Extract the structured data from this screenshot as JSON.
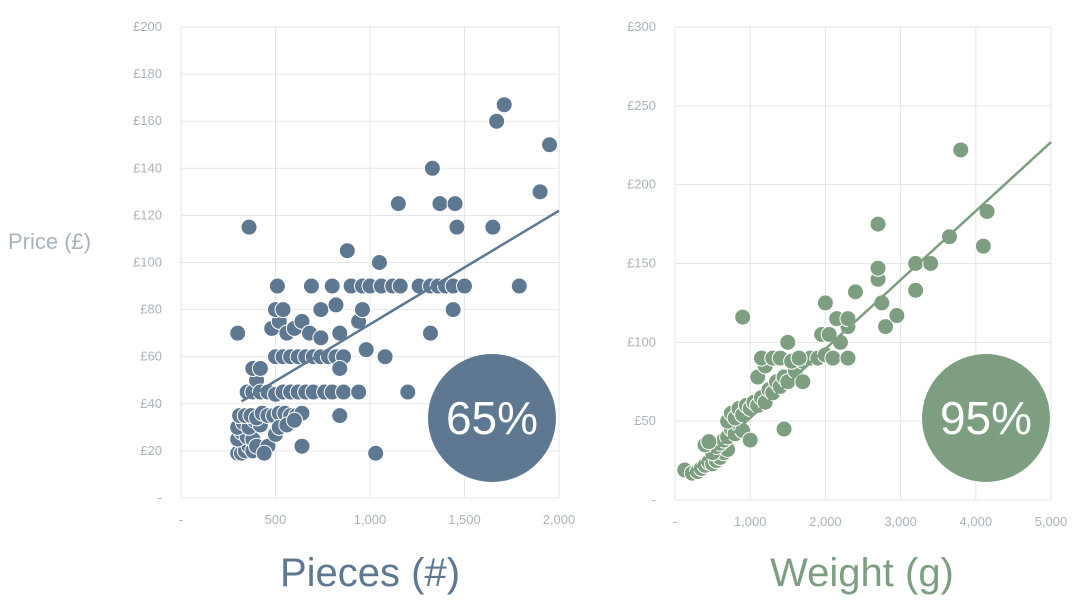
{
  "y_axis_label": "Price (£)",
  "colors": {
    "pieces": "#5f7891",
    "weight": "#7e9e82",
    "grid": "#e3e5e8",
    "tick": "#aab3bc"
  },
  "chart_data": [
    {
      "type": "scatter",
      "xlabel": "Pieces (#)",
      "ylabel": "Price (£)",
      "badge": "65%",
      "xlim": [
        0,
        2000
      ],
      "ylim": [
        0,
        200
      ],
      "x_ticks": [
        {
          "v": 0,
          "label": "-"
        },
        {
          "v": 500,
          "label": "500"
        },
        {
          "v": 1000,
          "label": "1,000"
        },
        {
          "v": 1500,
          "label": "1,500"
        },
        {
          "v": 2000,
          "label": "2,000"
        }
      ],
      "y_ticks": [
        {
          "v": 0,
          "label": "-"
        },
        {
          "v": 20,
          "label": "£20"
        },
        {
          "v": 40,
          "label": "£40"
        },
        {
          "v": 60,
          "label": "£60"
        },
        {
          "v": 80,
          "label": "£80"
        },
        {
          "v": 100,
          "label": "£100"
        },
        {
          "v": 120,
          "label": "£120"
        },
        {
          "v": 140,
          "label": "£140"
        },
        {
          "v": 160,
          "label": "£160"
        },
        {
          "v": 180,
          "label": "£180"
        },
        {
          "v": 200,
          "label": "£200"
        }
      ],
      "trendline": [
        [
          320,
          41
        ],
        [
          2000,
          122
        ]
      ],
      "points": [
        [
          300,
          19
        ],
        [
          320,
          19
        ],
        [
          340,
          20
        ],
        [
          360,
          22
        ],
        [
          380,
          20
        ],
        [
          300,
          25
        ],
        [
          320,
          28
        ],
        [
          350,
          26
        ],
        [
          380,
          25
        ],
        [
          400,
          22
        ],
        [
          300,
          30
        ],
        [
          330,
          32
        ],
        [
          360,
          30
        ],
        [
          390,
          33
        ],
        [
          420,
          31
        ],
        [
          310,
          35
        ],
        [
          340,
          35
        ],
        [
          370,
          35
        ],
        [
          400,
          34
        ],
        [
          430,
          36
        ],
        [
          460,
          35
        ],
        [
          490,
          35
        ],
        [
          520,
          36
        ],
        [
          550,
          36
        ],
        [
          580,
          35
        ],
        [
          610,
          35
        ],
        [
          640,
          36
        ],
        [
          460,
          22
        ],
        [
          500,
          27
        ],
        [
          520,
          30
        ],
        [
          560,
          31
        ],
        [
          600,
          33
        ],
        [
          440,
          19
        ],
        [
          640,
          22
        ],
        [
          350,
          45
        ],
        [
          380,
          45
        ],
        [
          400,
          50
        ],
        [
          420,
          45
        ],
        [
          460,
          45
        ],
        [
          500,
          44
        ],
        [
          540,
          45
        ],
        [
          580,
          45
        ],
        [
          620,
          45
        ],
        [
          660,
          45
        ],
        [
          700,
          45
        ],
        [
          760,
          45
        ],
        [
          800,
          45
        ],
        [
          860,
          45
        ],
        [
          940,
          45
        ],
        [
          1200,
          45
        ],
        [
          380,
          55
        ],
        [
          420,
          55
        ],
        [
          500,
          60
        ],
        [
          540,
          60
        ],
        [
          580,
          60
        ],
        [
          620,
          60
        ],
        [
          660,
          60
        ],
        [
          700,
          60
        ],
        [
          740,
          60
        ],
        [
          780,
          60
        ],
        [
          820,
          60
        ],
        [
          860,
          60
        ],
        [
          840,
          55
        ],
        [
          980,
          63
        ],
        [
          1080,
          60
        ],
        [
          300,
          70
        ],
        [
          480,
          72
        ],
        [
          520,
          75
        ],
        [
          560,
          70
        ],
        [
          600,
          72
        ],
        [
          640,
          75
        ],
        [
          680,
          70
        ],
        [
          740,
          68
        ],
        [
          840,
          70
        ],
        [
          940,
          75
        ],
        [
          1320,
          70
        ],
        [
          500,
          80
        ],
        [
          540,
          80
        ],
        [
          740,
          80
        ],
        [
          820,
          82
        ],
        [
          960,
          80
        ],
        [
          1440,
          80
        ],
        [
          510,
          90
        ],
        [
          690,
          90
        ],
        [
          800,
          90
        ],
        [
          900,
          90
        ],
        [
          960,
          90
        ],
        [
          1000,
          90
        ],
        [
          1060,
          90
        ],
        [
          1120,
          90
        ],
        [
          1160,
          90
        ],
        [
          1260,
          90
        ],
        [
          1320,
          90
        ],
        [
          1360,
          90
        ],
        [
          1400,
          90
        ],
        [
          1440,
          90
        ],
        [
          1500,
          90
        ],
        [
          1790,
          90
        ],
        [
          880,
          105
        ],
        [
          1050,
          100
        ],
        [
          360,
          115
        ],
        [
          1150,
          125
        ],
        [
          1370,
          125
        ],
        [
          1450,
          125
        ],
        [
          1460,
          115
        ],
        [
          1650,
          115
        ],
        [
          1330,
          140
        ],
        [
          1900,
          130
        ],
        [
          1950,
          150
        ],
        [
          1670,
          160
        ],
        [
          1710,
          167
        ],
        [
          1030,
          19
        ],
        [
          840,
          35
        ]
      ]
    },
    {
      "type": "scatter",
      "xlabel": "Weight (g)",
      "ylabel": "Price (£)",
      "badge": "95%",
      "xlim": [
        0,
        5000
      ],
      "ylim": [
        0,
        300
      ],
      "x_ticks": [
        {
          "v": 0,
          "label": "-"
        },
        {
          "v": 1000,
          "label": "1,000"
        },
        {
          "v": 2000,
          "label": "2,000"
        },
        {
          "v": 3000,
          "label": "3,000"
        },
        {
          "v": 4000,
          "label": "4,000"
        },
        {
          "v": 5000,
          "label": "5,000"
        }
      ],
      "y_ticks": [
        {
          "v": 0,
          "label": "-"
        },
        {
          "v": 50,
          "label": "£50"
        },
        {
          "v": 100,
          "label": "£100"
        },
        {
          "v": 150,
          "label": "£150"
        },
        {
          "v": 200,
          "label": "£200"
        },
        {
          "v": 250,
          "label": "£250"
        },
        {
          "v": 300,
          "label": "£300"
        }
      ],
      "trendline": [
        [
          150,
          15
        ],
        [
          5000,
          227
        ]
      ],
      "points": [
        [
          130,
          19
        ],
        [
          230,
          17
        ],
        [
          300,
          18
        ],
        [
          350,
          20
        ],
        [
          400,
          22
        ],
        [
          450,
          24
        ],
        [
          500,
          23
        ],
        [
          550,
          25
        ],
        [
          600,
          27
        ],
        [
          650,
          30
        ],
        [
          700,
          32
        ],
        [
          500,
          30
        ],
        [
          550,
          34
        ],
        [
          600,
          36
        ],
        [
          650,
          38
        ],
        [
          700,
          40
        ],
        [
          400,
          35
        ],
        [
          450,
          37
        ],
        [
          750,
          45
        ],
        [
          800,
          42
        ],
        [
          850,
          48
        ],
        [
          900,
          44
        ],
        [
          700,
          50
        ],
        [
          750,
          55
        ],
        [
          800,
          52
        ],
        [
          850,
          58
        ],
        [
          900,
          54
        ],
        [
          950,
          60
        ],
        [
          1000,
          58
        ],
        [
          1050,
          62
        ],
        [
          1100,
          60
        ],
        [
          1150,
          65
        ],
        [
          1200,
          62
        ],
        [
          1250,
          70
        ],
        [
          1300,
          68
        ],
        [
          1350,
          75
        ],
        [
          1400,
          72
        ],
        [
          1450,
          78
        ],
        [
          1500,
          75
        ],
        [
          1600,
          82
        ],
        [
          1700,
          88
        ],
        [
          1800,
          90
        ],
        [
          1900,
          90
        ],
        [
          2000,
          92
        ],
        [
          2100,
          90
        ],
        [
          2300,
          90
        ],
        [
          2200,
          100
        ],
        [
          2300,
          110
        ],
        [
          1100,
          78
        ],
        [
          1200,
          85
        ],
        [
          1150,
          90
        ],
        [
          1300,
          90
        ],
        [
          1400,
          90
        ],
        [
          1500,
          100
        ],
        [
          1550,
          88
        ],
        [
          1000,
          38
        ],
        [
          1450,
          45
        ],
        [
          1700,
          75
        ],
        [
          1650,
          90
        ],
        [
          1950,
          105
        ],
        [
          2050,
          105
        ],
        [
          2000,
          125
        ],
        [
          2400,
          132
        ],
        [
          2150,
          115
        ],
        [
          2300,
          115
        ],
        [
          2750,
          125
        ],
        [
          2800,
          110
        ],
        [
          2700,
          140
        ],
        [
          2700,
          147
        ],
        [
          2700,
          175
        ],
        [
          2950,
          117
        ],
        [
          3200,
          133
        ],
        [
          3200,
          150
        ],
        [
          3400,
          150
        ],
        [
          3650,
          167
        ],
        [
          3800,
          222
        ],
        [
          4100,
          161
        ],
        [
          4150,
          183
        ],
        [
          900,
          116
        ]
      ]
    }
  ]
}
